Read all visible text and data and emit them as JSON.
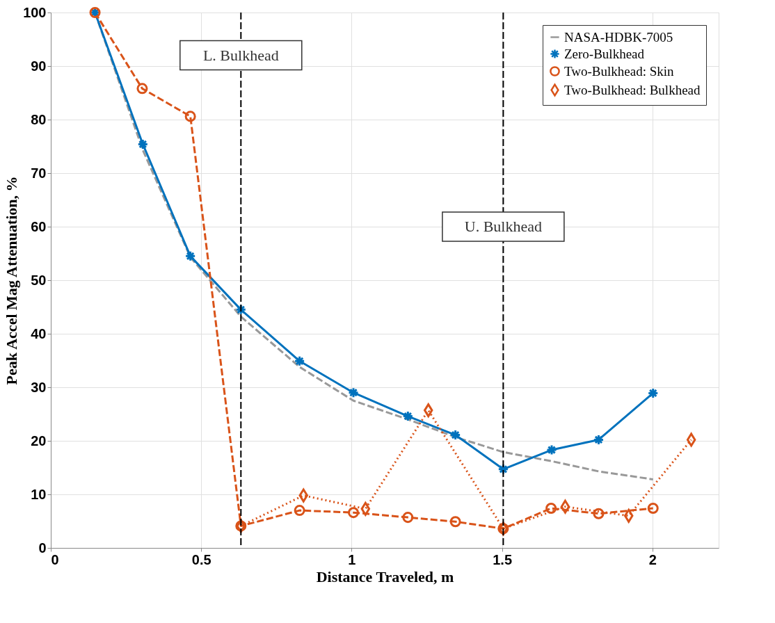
{
  "chart_data": {
    "type": "line",
    "xlabel": "Distance Traveled, m",
    "ylabel": "Peak Accel Mag Attenuation, %",
    "xlim": [
      0,
      2.22
    ],
    "xticks": [
      0,
      0.5,
      1,
      1.5,
      2
    ],
    "ylim": [
      0,
      100
    ],
    "yticks": [
      0,
      10,
      20,
      30,
      40,
      50,
      60,
      70,
      80,
      90,
      100
    ],
    "grid": true,
    "legend": "top right",
    "series": [
      {
        "name": "NASA-HDBK-7005",
        "color": "#999999",
        "line_style": "dashed",
        "marker": "none",
        "x": [
          0.147,
          0.306,
          0.464,
          0.632,
          0.827,
          1.006,
          1.187,
          1.345,
          1.504,
          1.665,
          1.821,
          2.002
        ],
        "values": [
          100,
          74.3,
          54.3,
          43.2,
          33.8,
          27.5,
          24,
          20.7,
          17.9,
          16.2,
          14.3,
          12.8
        ]
      },
      {
        "name": "Zero-Bulkhead",
        "color": "#0072bd",
        "line_style": "solid",
        "marker": "cross",
        "x": [
          0.147,
          0.306,
          0.464,
          0.632,
          0.827,
          1.006,
          1.187,
          1.345,
          1.504,
          1.665,
          1.821,
          2.002
        ],
        "values": [
          100,
          75.4,
          54.5,
          44.5,
          34.9,
          29.0,
          24.6,
          21.1,
          14.7,
          18.3,
          20.2,
          28.9
        ]
      },
      {
        "name": "Two-Bulkhead: Skin",
        "color": "#d95319",
        "line_style": "dashed",
        "marker": "circle",
        "x": [
          0.147,
          0.304,
          0.464,
          0.632,
          0.827,
          1.006,
          1.187,
          1.345,
          1.504,
          1.663,
          1.821,
          2.002
        ],
        "values": [
          100,
          85.8,
          80.6,
          4.1,
          7.0,
          6.6,
          5.7,
          4.9,
          3.6,
          7.4,
          6.4,
          7.4
        ]
      },
      {
        "name": "Two-Bulkhead: Bulkhead",
        "color": "#d95319",
        "line_style": "dotted",
        "marker": "diamond",
        "x": [
          0.632,
          0.84,
          1.046,
          1.255,
          1.504,
          1.71,
          1.921,
          2.129
        ],
        "values": [
          4.1,
          9.8,
          7.3,
          25.7,
          3.6,
          7.7,
          6.0,
          20.2
        ]
      }
    ],
    "ref_lines": [
      {
        "axis": "x",
        "value": 0.632,
        "label": "L. Bulkhead",
        "color": "#000000",
        "line_style": "dashed"
      },
      {
        "axis": "x",
        "value": 1.504,
        "label": "U. Bulkhead",
        "color": "#000000",
        "line_style": "dashed"
      }
    ]
  }
}
